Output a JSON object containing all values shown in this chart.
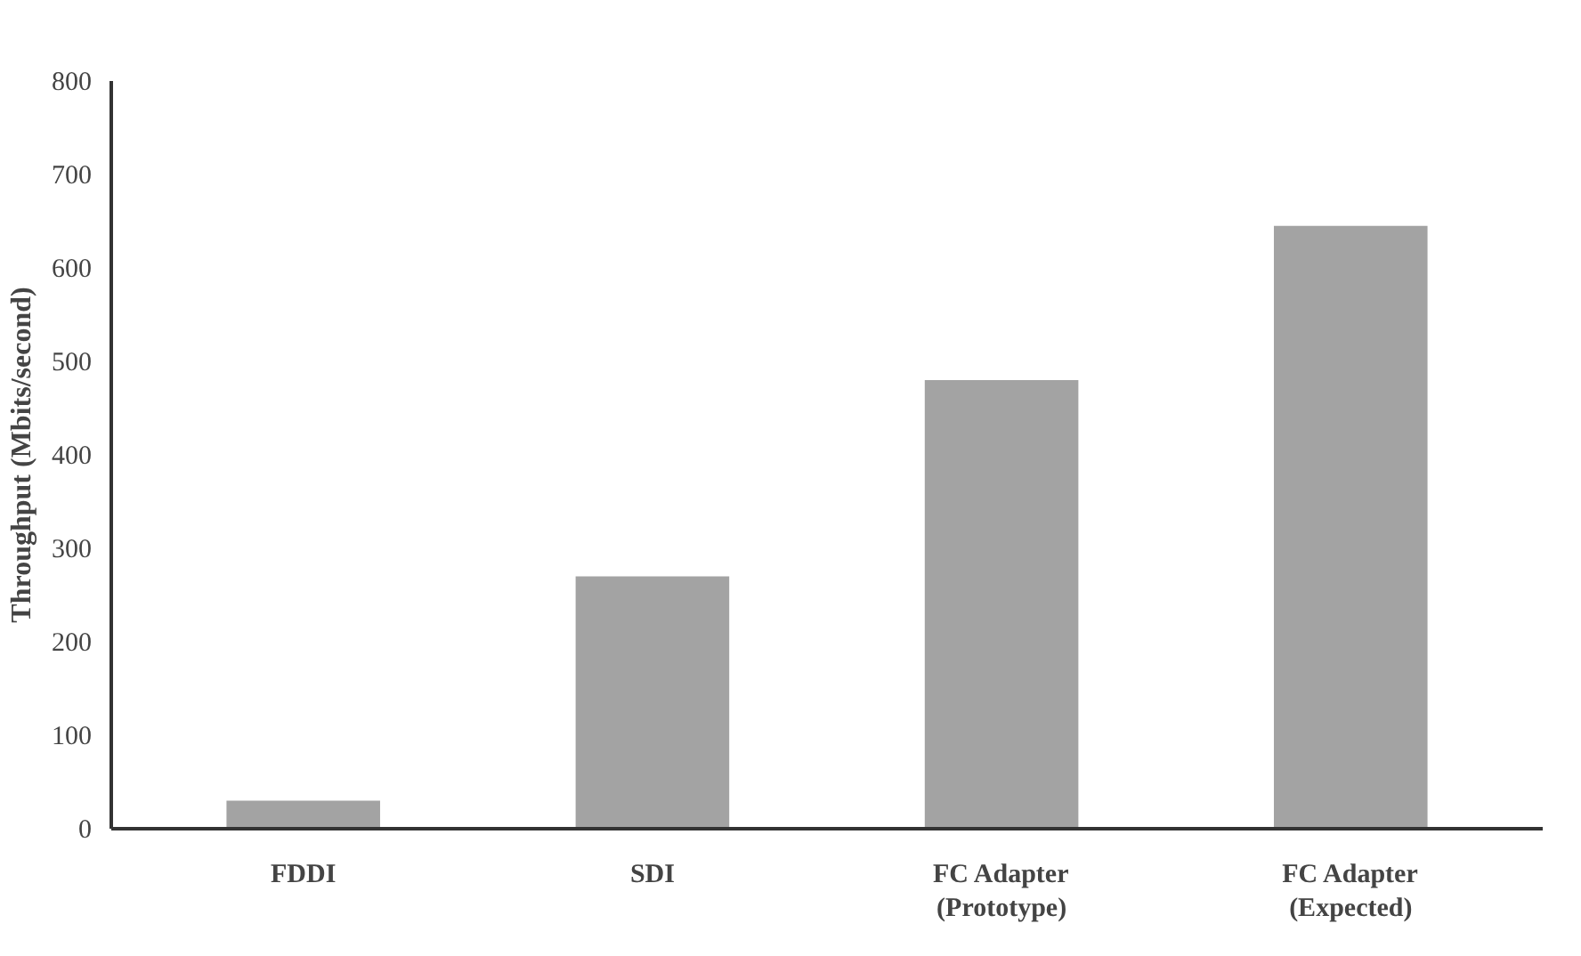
{
  "chart_data": {
    "type": "bar",
    "ylabel": "Throughput (Mbits/second)",
    "categories": [
      "FDDI",
      "SDI",
      "FC Adapter\n(Prototype)",
      "FC Adapter\n(Expected)"
    ],
    "values": [
      30,
      270,
      480,
      645
    ],
    "color": "#a3a3a3",
    "ylim": [
      0,
      800
    ],
    "yticks": [
      0,
      100,
      200,
      300,
      400,
      500,
      600,
      700,
      800
    ],
    "grid": false
  }
}
